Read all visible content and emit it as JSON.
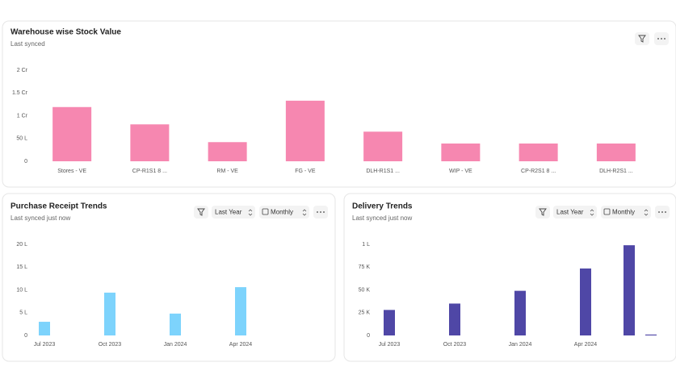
{
  "chart_data": [
    {
      "type": "bar",
      "title": "Warehouse wise Stock Value",
      "subtitle": "Last synced",
      "categories": [
        "Stores - VE",
        "CP-R1S1 8 ...",
        "RM - VE",
        "FG - VE",
        "DLH-R1S1 ...",
        "WIP - VE",
        "CP-R2S1 8 ...",
        "DLH-R2S1 ..."
      ],
      "values": [
        11900000,
        8100000,
        4200000,
        13300000,
        6500000,
        3900000,
        3900000,
        3900000
      ],
      "color": "#f687b0",
      "ylim": [
        0,
        20000000
      ],
      "yticks": [
        0,
        {
          "value": 5000000,
          "label": "50 L"
        },
        {
          "value": 10000000,
          "label": "1 Cr"
        },
        {
          "value": 15000000,
          "label": "1.5 Cr"
        },
        {
          "value": 20000000,
          "label": "2 Cr"
        }
      ]
    },
    {
      "type": "bar",
      "title": "Purchase Receipt Trends",
      "subtitle": "Last synced just now",
      "filters": [
        "Last Year",
        "Monthly"
      ],
      "categories": [
        "Jul 2023",
        null,
        null,
        "Oct 2023",
        null,
        null,
        "Jan 2024",
        null,
        null,
        "Apr 2024",
        null,
        null,
        null
      ],
      "values": [
        300000,
        0,
        0,
        940000,
        0,
        0,
        480000,
        0,
        0,
        1060000,
        0,
        0,
        0
      ],
      "color": "#7dd3fc",
      "ylim": [
        0,
        2000000
      ],
      "yticks": [
        0,
        {
          "value": 500000,
          "label": "5 L"
        },
        {
          "value": 1000000,
          "label": "10 L"
        },
        {
          "value": 1500000,
          "label": "15 L"
        },
        {
          "value": 2000000,
          "label": "20 L"
        }
      ]
    },
    {
      "type": "bar",
      "title": "Delivery Trends",
      "subtitle": "Last synced just now",
      "filters": [
        "Last Year",
        "Monthly"
      ],
      "categories": [
        "Jul 2023",
        null,
        null,
        "Oct 2023",
        null,
        null,
        "Jan 2024",
        null,
        null,
        "Apr 2024",
        null,
        null,
        null
      ],
      "values": [
        28000,
        0,
        0,
        35000,
        0,
        0,
        49000,
        0,
        0,
        73500,
        0,
        99000,
        1000
      ],
      "color": "#4f47a6",
      "ylim": [
        0,
        100000
      ],
      "yticks": [
        0,
        {
          "value": 25000,
          "label": "25 K"
        },
        {
          "value": 50000,
          "label": "50 K"
        },
        {
          "value": 75000,
          "label": "75 K"
        },
        {
          "value": 100000,
          "label": "1 L"
        }
      ]
    }
  ]
}
